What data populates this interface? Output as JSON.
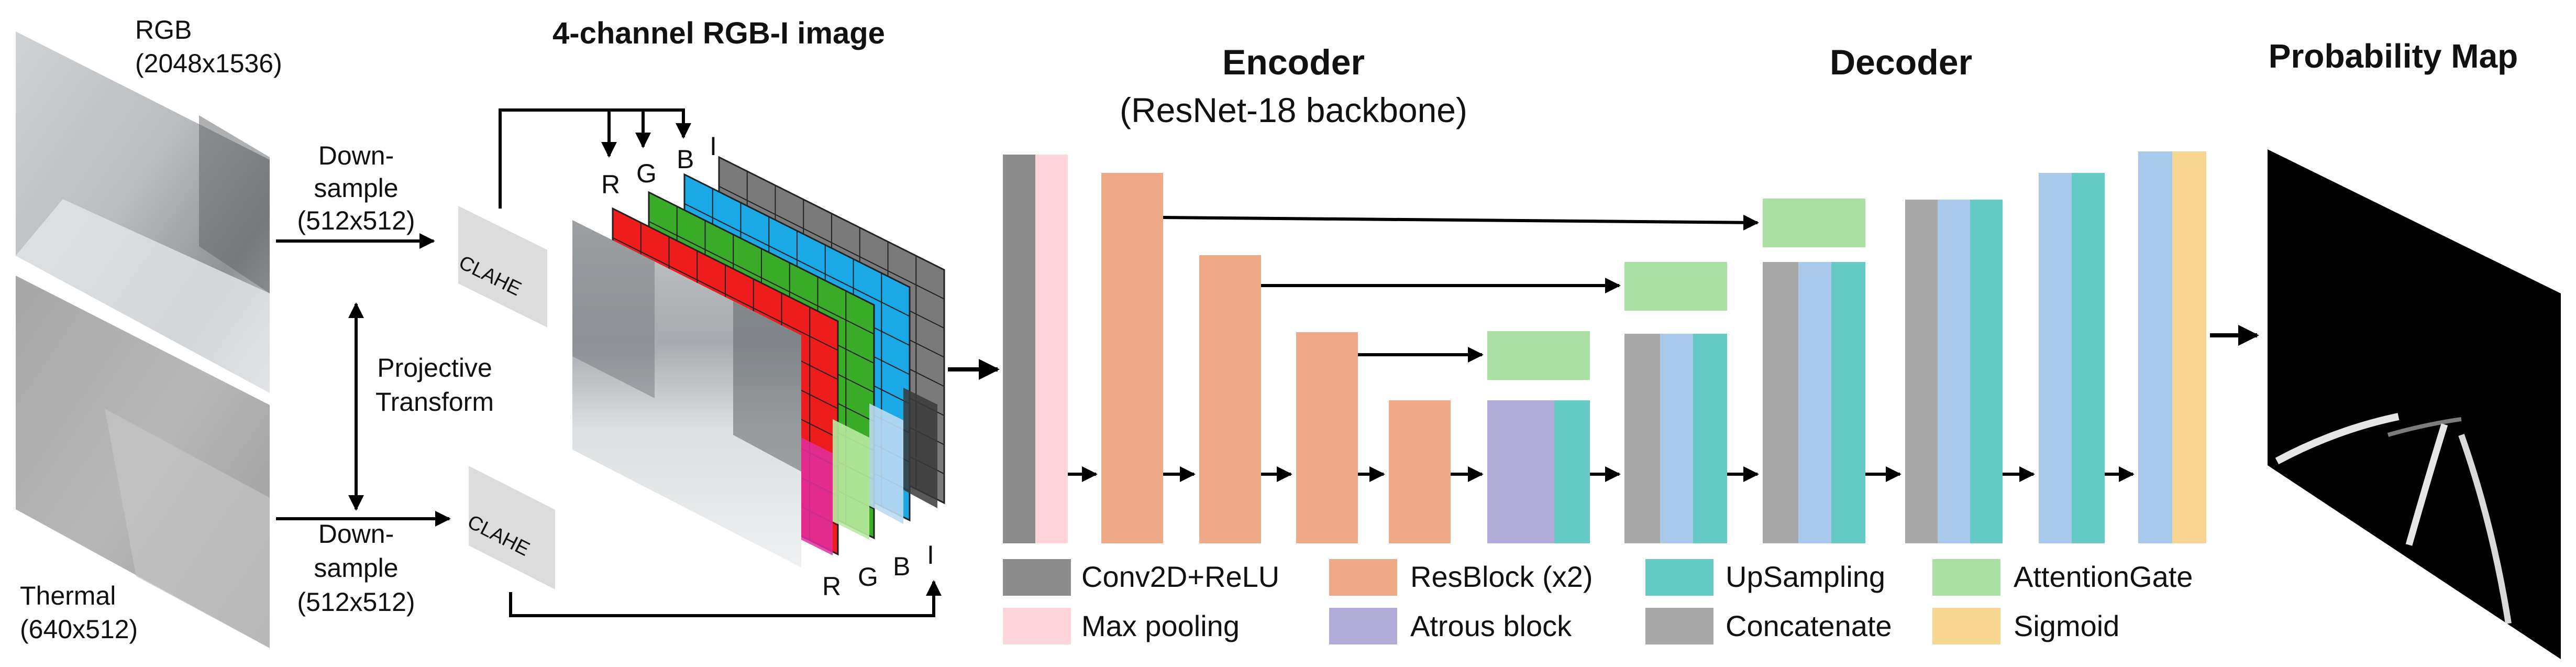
{
  "inputs": {
    "rgb_label": "RGB",
    "rgb_res": "(2048x1536)",
    "thermal_label": "Thermal",
    "thermal_res": "(640x512)",
    "down_top": [
      "Down-",
      "sample",
      "(512x512)"
    ],
    "down_bottom": [
      "Down-",
      "sample",
      "(512x512)"
    ],
    "projective": [
      "Projective",
      "Transform"
    ],
    "clahe": "CLAHE"
  },
  "rgbi": {
    "title": "4-channel RGB-I image",
    "channels_top": [
      "R",
      "G",
      "B",
      "I"
    ],
    "channels_bottom": [
      "R",
      "G",
      "B",
      "I"
    ]
  },
  "encoder": {
    "title": "Encoder",
    "subtitle": "(ResNet-18 backbone)"
  },
  "decoder": {
    "title": "Decoder"
  },
  "output": {
    "title": "Probability Map"
  },
  "legend": [
    {
      "label": "Conv2D+ReLU",
      "color": "#8c8c8c"
    },
    {
      "label": "ResBlock (x2)",
      "color": "#f0a987"
    },
    {
      "label": "UpSampling",
      "color": "#66cac4"
    },
    {
      "label": "AttentionGate",
      "color": "#abe0a5"
    },
    {
      "label": "Max pooling",
      "color": "#fdd5da"
    },
    {
      "label": "Atrous block",
      "color": "#b1add8"
    },
    {
      "label": "Concatenate",
      "color": "#a8a8a8"
    },
    {
      "label": "Sigmoid",
      "color": "#f6d690"
    }
  ],
  "colors": {
    "conv": "#8c8c8c",
    "maxpool": "#fdd5da",
    "resblock": "#f0a987",
    "atrous": "#b1add8",
    "upsampling": "#66cac4",
    "attention": "#abe0a5",
    "concat": "#a8a8a8",
    "bluecol": "#a9c9ea",
    "sigmoid": "#f6d690",
    "ch_red": "#ee1c1c",
    "ch_green": "#3bab2a",
    "ch_blue": "#1ba8e6",
    "ch_gray": "#7a7a7a"
  }
}
